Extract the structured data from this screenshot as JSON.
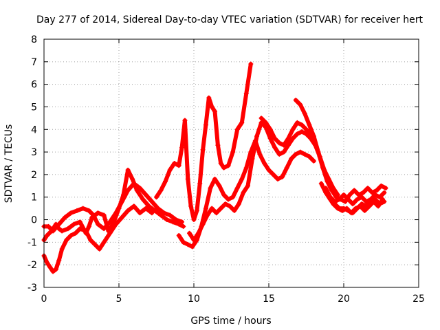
{
  "chart_data": {
    "type": "scatter",
    "title": "Day 277 of 2014, Sidereal Day-to-day VTEC variation (SDTVAR) for receiver hert",
    "xlabel": "GPS time / hours",
    "ylabel": "SDTVAR / TECUs",
    "xlim": [
      0,
      25
    ],
    "ylim": [
      -3,
      8
    ],
    "xticks": [
      "0",
      "5",
      "10",
      "15",
      "20",
      "25"
    ],
    "yticks": [
      "-3",
      "-2",
      "-1",
      "0",
      "1",
      "2",
      "3",
      "4",
      "5",
      "6",
      "7",
      "8"
    ],
    "grid": true,
    "legend": "none",
    "marker": "+",
    "color": "#ff0000",
    "series": [
      {
        "name": "trace-1",
        "x": [
          0.0,
          0.2,
          0.5,
          0.8,
          1.0,
          1.2,
          1.6,
          2.0,
          2.4,
          2.8,
          3.0,
          3.2,
          3.6,
          4.0,
          4.3,
          4.6,
          5.0,
          5.3,
          5.6,
          5.9,
          6.2,
          6.6,
          7.0,
          7.4,
          7.8,
          8.2,
          8.6,
          9.0,
          9.3
        ],
        "y": [
          -0.9,
          -0.7,
          -0.5,
          -0.2,
          -0.4,
          -0.5,
          -0.4,
          -0.2,
          -0.1,
          -0.6,
          -0.3,
          0.1,
          0.3,
          0.2,
          -0.5,
          -0.2,
          0.5,
          1.1,
          2.2,
          1.8,
          1.3,
          0.9,
          0.6,
          0.4,
          0.2,
          0.0,
          -0.1,
          -0.2,
          -0.3
        ]
      },
      {
        "name": "trace-2",
        "x": [
          0.0,
          0.2,
          0.4,
          0.6,
          0.8,
          1.0,
          1.2,
          1.5,
          1.8,
          2.1,
          2.4,
          2.8,
          3.1,
          3.4,
          3.7,
          4.0,
          4.4,
          4.8,
          5.2,
          5.6,
          6.0,
          6.4,
          6.8,
          7.2
        ],
        "y": [
          -1.6,
          -1.9,
          -2.1,
          -2.3,
          -2.2,
          -1.8,
          -1.3,
          -0.9,
          -0.7,
          -0.6,
          -0.4,
          -0.5,
          -0.9,
          -1.1,
          -1.3,
          -1.0,
          -0.6,
          -0.2,
          0.1,
          0.4,
          0.6,
          0.3,
          0.5,
          0.3
        ]
      },
      {
        "name": "trace-3",
        "x": [
          0.0,
          0.3,
          0.6,
          1.0,
          1.4,
          1.8,
          2.2,
          2.6,
          3.0,
          3.3,
          3.6,
          4.0,
          4.4,
          4.8,
          5.2,
          5.6,
          6.0,
          6.4,
          6.8,
          7.2,
          7.6,
          8.0,
          8.4,
          8.8,
          9.2
        ],
        "y": [
          -0.3,
          -0.3,
          -0.5,
          -0.2,
          0.1,
          0.3,
          0.4,
          0.5,
          0.4,
          0.2,
          -0.2,
          -0.4,
          -0.1,
          0.3,
          0.8,
          1.3,
          1.6,
          1.4,
          1.1,
          0.8,
          0.5,
          0.3,
          0.2,
          0.0,
          -0.1
        ]
      },
      {
        "name": "trace-4",
        "x": [
          7.5,
          7.8,
          8.1,
          8.4,
          8.7,
          9.0,
          9.2,
          9.4,
          9.6,
          9.8,
          10.0,
          10.2,
          10.4,
          10.6,
          10.8,
          11.0,
          11.2,
          11.4,
          11.6,
          11.8,
          12.0,
          12.3,
          12.6,
          12.9,
          13.2,
          13.5,
          13.8
        ],
        "y": [
          1.0,
          1.3,
          1.7,
          2.2,
          2.5,
          2.4,
          3.2,
          4.4,
          1.8,
          0.6,
          0.0,
          0.4,
          1.6,
          3.1,
          4.2,
          5.4,
          5.0,
          4.8,
          3.3,
          2.5,
          2.3,
          2.4,
          3.0,
          4.0,
          4.3,
          5.6,
          6.9
        ]
      },
      {
        "name": "trace-5",
        "x": [
          9.0,
          9.3,
          9.6,
          9.9,
          10.2,
          10.5,
          10.8,
          11.1,
          11.4,
          11.7,
          12.0,
          12.3,
          12.6,
          12.9,
          13.2,
          13.5,
          13.8,
          14.1,
          14.4,
          14.7,
          15.0,
          15.3,
          15.6,
          15.9,
          16.2,
          16.5,
          16.8,
          17.1,
          17.4,
          17.7,
          18.0
        ],
        "y": [
          -0.7,
          -1.0,
          -1.1,
          -1.2,
          -0.9,
          -0.3,
          0.5,
          1.4,
          1.8,
          1.5,
          1.1,
          0.9,
          1.0,
          1.4,
          1.8,
          2.3,
          3.0,
          3.5,
          2.9,
          2.5,
          2.2,
          2.0,
          1.8,
          1.9,
          2.3,
          2.7,
          2.9,
          3.0,
          2.9,
          2.8,
          2.6
        ]
      },
      {
        "name": "trace-6",
        "x": [
          9.7,
          10.0,
          10.3,
          10.6,
          10.9,
          11.2,
          11.5,
          11.8,
          12.1,
          12.4,
          12.7,
          13.0,
          13.3,
          13.6,
          13.9,
          14.2,
          14.5,
          14.8,
          15.1,
          15.4,
          15.7,
          16.0,
          16.3,
          16.6,
          16.9,
          17.2,
          17.5,
          17.8,
          18.1,
          18.4,
          18.7
        ],
        "y": [
          -0.6,
          -0.9,
          -0.6,
          -0.2,
          0.2,
          0.5,
          0.3,
          0.5,
          0.7,
          0.6,
          0.4,
          0.7,
          1.2,
          1.5,
          2.7,
          3.7,
          4.3,
          4.1,
          3.6,
          3.2,
          2.9,
          3.0,
          3.3,
          3.6,
          3.8,
          3.9,
          3.8,
          3.6,
          3.3,
          2.8,
          2.2
        ]
      },
      {
        "name": "trace-7",
        "x": [
          14.5,
          14.8,
          15.1,
          15.4,
          15.7,
          16.0,
          16.3,
          16.6,
          16.9,
          17.2,
          17.5,
          17.8,
          18.1,
          18.4,
          18.7,
          19.0,
          19.3,
          19.6
        ],
        "y": [
          4.5,
          4.3,
          4.0,
          3.6,
          3.4,
          3.3,
          3.6,
          4.0,
          4.3,
          4.2,
          4.0,
          3.8,
          3.4,
          2.8,
          2.2,
          1.8,
          1.4,
          1.1
        ]
      },
      {
        "name": "trace-8",
        "x": [
          16.8,
          17.1,
          17.4,
          17.7,
          18.0,
          18.3,
          18.6,
          18.9,
          19.2,
          19.5,
          19.8,
          20.1,
          20.4,
          20.7,
          21.0,
          21.3,
          21.6,
          21.9,
          22.2,
          22.5,
          22.8
        ],
        "y": [
          5.3,
          5.1,
          4.7,
          4.2,
          3.7,
          3.0,
          2.3,
          1.7,
          1.3,
          1.0,
          0.9,
          0.8,
          1.1,
          1.3,
          1.1,
          1.2,
          1.4,
          1.2,
          1.3,
          1.5,
          1.4
        ]
      },
      {
        "name": "trace-9",
        "x": [
          18.5,
          18.8,
          19.1,
          19.4,
          19.7,
          20.0,
          20.3,
          20.6,
          20.9,
          21.2,
          21.5,
          21.8,
          22.1,
          22.4,
          22.7
        ],
        "y": [
          1.6,
          1.2,
          0.9,
          0.7,
          0.5,
          0.5,
          0.4,
          0.3,
          0.5,
          0.7,
          0.6,
          0.8,
          0.9,
          0.7,
          0.8
        ]
      },
      {
        "name": "trace-10",
        "x": [
          18.8,
          19.1,
          19.4,
          19.7,
          20.0,
          20.3,
          20.6,
          20.9,
          21.2,
          21.5,
          21.8,
          22.1,
          22.4,
          22.7
        ],
        "y": [
          1.4,
          1.0,
          0.8,
          0.9,
          1.1,
          0.9,
          0.7,
          0.9,
          1.0,
          0.8,
          0.9,
          1.1,
          1.0,
          1.2
        ]
      },
      {
        "name": "trace-11",
        "x": [
          19.0,
          19.3,
          19.6,
          19.9,
          20.2,
          20.5,
          20.8,
          21.1,
          21.4,
          21.7,
          22.0,
          22.3,
          22.6
        ],
        "y": [
          1.0,
          0.7,
          0.5,
          0.4,
          0.5,
          0.3,
          0.5,
          0.6,
          0.4,
          0.6,
          0.8,
          0.6,
          0.9
        ]
      }
    ]
  }
}
